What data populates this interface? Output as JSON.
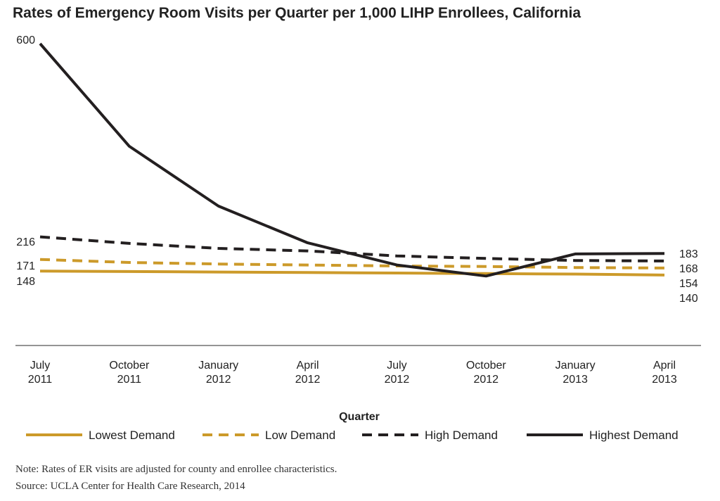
{
  "chart_data": {
    "type": "line",
    "title": "Rates of Emergency Room Visits per Quarter per 1,000 LIHP Enrollees, California",
    "xlabel": "Quarter",
    "ylabel": "",
    "categories": [
      [
        "July",
        "2011"
      ],
      [
        "October",
        "2011"
      ],
      [
        "January",
        "2012"
      ],
      [
        "April",
        "2012"
      ],
      [
        "July",
        "2012"
      ],
      [
        "October",
        "2012"
      ],
      [
        "January",
        "2013"
      ],
      [
        "April",
        "2013"
      ]
    ],
    "ylim": [
      0,
      600
    ],
    "grid": false,
    "legend_position": "bottom",
    "series": [
      {
        "name": "Lowest Demand",
        "values": [
          148,
          147,
          146,
          145,
          144,
          143,
          142,
          140
        ],
        "color": "#cc9a2a",
        "style": "solid",
        "start_label": "148",
        "end_label": "140"
      },
      {
        "name": "Low Demand",
        "values": [
          171,
          165,
          162,
          160,
          158,
          157,
          155,
          154
        ],
        "color": "#cc9a2a",
        "style": "dashed",
        "start_label": "171",
        "end_label": "154"
      },
      {
        "name": "High Demand",
        "values": [
          216,
          203,
          193,
          188,
          178,
          173,
          169,
          168
        ],
        "color": "#231f20",
        "style": "dashed",
        "start_label": "216",
        "end_label": "168"
      },
      {
        "name": "Highest Demand",
        "values": [
          600,
          396,
          277,
          204,
          160,
          138,
          182,
          183
        ],
        "color": "#231f20",
        "style": "solid",
        "start_label": "600",
        "end_label": "183"
      }
    ]
  },
  "footnotes": {
    "note": "Note: Rates of ER visits are adjusted for county and enrollee characteristics.",
    "source": "Source: UCLA Center for Health Care Research, 2014"
  }
}
